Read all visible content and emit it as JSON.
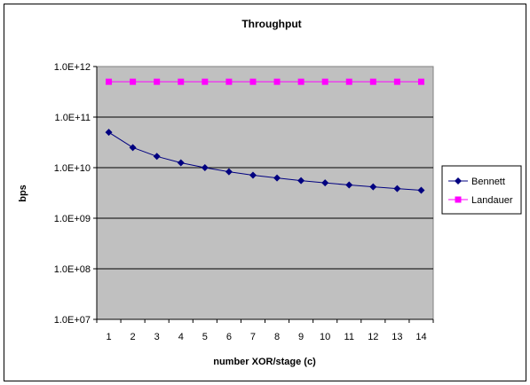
{
  "chart_data": {
    "type": "line",
    "title": "Throughput",
    "xlabel": "number XOR/stage (c)",
    "ylabel": "bps",
    "y_scale": "log",
    "ylim": [
      10000000,
      1000000000000
    ],
    "y_tick_labels": [
      "1.0E+07",
      "1.0E+08",
      "1.0E+09",
      "1.0E+10",
      "1.0E+11",
      "1.0E+12"
    ],
    "categories": [
      "1",
      "2",
      "3",
      "4",
      "5",
      "6",
      "7",
      "8",
      "9",
      "10",
      "11",
      "12",
      "13",
      "14"
    ],
    "grid": "horizontal major gridlines",
    "plot_background": "#c0c0c0",
    "legend_position": "right",
    "series": [
      {
        "name": "Bennett",
        "color": "#000080",
        "marker": "diamond",
        "values": [
          50000000000,
          25000000000,
          16700000000,
          12500000000,
          10000000000,
          8300000000,
          7100000000,
          6250000000,
          5550000000,
          5000000000,
          4550000000,
          4170000000,
          3850000000,
          3570000000
        ]
      },
      {
        "name": "Landauer",
        "color": "#ff00ff",
        "marker": "square",
        "values": [
          500000000000,
          500000000000,
          500000000000,
          500000000000,
          500000000000,
          500000000000,
          500000000000,
          500000000000,
          500000000000,
          500000000000,
          500000000000,
          500000000000,
          500000000000,
          500000000000
        ]
      }
    ]
  }
}
